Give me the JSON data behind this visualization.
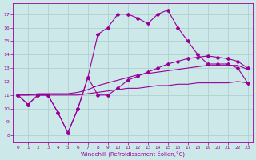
{
  "xlabel": "Windchill (Refroidissement éolien,°C)",
  "background_color": "#cce8e8",
  "grid_color": "#aacccc",
  "line_color": "#990099",
  "xlim": [
    -0.5,
    23.5
  ],
  "ylim": [
    7.5,
    17.8
  ],
  "yticks": [
    8,
    9,
    10,
    11,
    12,
    13,
    14,
    15,
    16,
    17
  ],
  "xticks": [
    0,
    1,
    2,
    3,
    4,
    5,
    6,
    7,
    8,
    9,
    10,
    11,
    12,
    13,
    14,
    15,
    16,
    17,
    18,
    19,
    20,
    21,
    22,
    23
  ],
  "line_jagged_x": [
    0,
    1,
    2,
    3,
    4,
    5,
    6,
    7,
    8,
    9,
    10,
    11,
    12,
    13,
    14,
    15,
    16,
    17,
    18,
    19,
    20,
    21,
    22,
    23
  ],
  "line_jagged_y": [
    11.0,
    10.3,
    11.0,
    11.0,
    9.7,
    8.2,
    10.0,
    12.3,
    15.5,
    16.0,
    17.0,
    17.0,
    16.7,
    16.3,
    17.0,
    17.3,
    16.0,
    15.0,
    14.0,
    13.3,
    13.3,
    13.3,
    13.0,
    11.9
  ],
  "line_med_x": [
    0,
    1,
    2,
    3,
    4,
    5,
    6,
    7,
    8,
    9,
    10,
    11,
    12,
    13,
    14,
    15,
    16,
    17,
    18,
    19,
    20,
    21,
    22,
    23
  ],
  "line_med_y": [
    11.0,
    10.3,
    11.0,
    11.0,
    9.7,
    8.2,
    10.0,
    12.3,
    11.0,
    11.0,
    11.5,
    12.1,
    12.4,
    12.7,
    13.0,
    13.3,
    13.5,
    13.7,
    13.8,
    13.9,
    13.8,
    13.7,
    13.5,
    13.0
  ],
  "line_upper_smooth_x": [
    0,
    1,
    2,
    3,
    4,
    5,
    6,
    7,
    8,
    9,
    10,
    11,
    12,
    13,
    14,
    15,
    16,
    17,
    18,
    19,
    20,
    21,
    22,
    23
  ],
  "line_upper_smooth_y": [
    11.0,
    11.0,
    11.1,
    11.1,
    11.1,
    11.1,
    11.2,
    11.4,
    11.7,
    11.9,
    12.1,
    12.3,
    12.5,
    12.6,
    12.7,
    12.8,
    12.9,
    13.0,
    13.1,
    13.2,
    13.2,
    13.2,
    13.2,
    12.9
  ],
  "line_lower_smooth_x": [
    0,
    1,
    2,
    3,
    4,
    5,
    6,
    7,
    8,
    9,
    10,
    11,
    12,
    13,
    14,
    15,
    16,
    17,
    18,
    19,
    20,
    21,
    22,
    23
  ],
  "line_lower_smooth_y": [
    11.0,
    11.0,
    11.0,
    11.0,
    11.0,
    11.0,
    11.0,
    11.1,
    11.2,
    11.3,
    11.4,
    11.5,
    11.5,
    11.6,
    11.7,
    11.7,
    11.8,
    11.8,
    11.9,
    11.9,
    11.9,
    11.9,
    12.0,
    11.9
  ]
}
